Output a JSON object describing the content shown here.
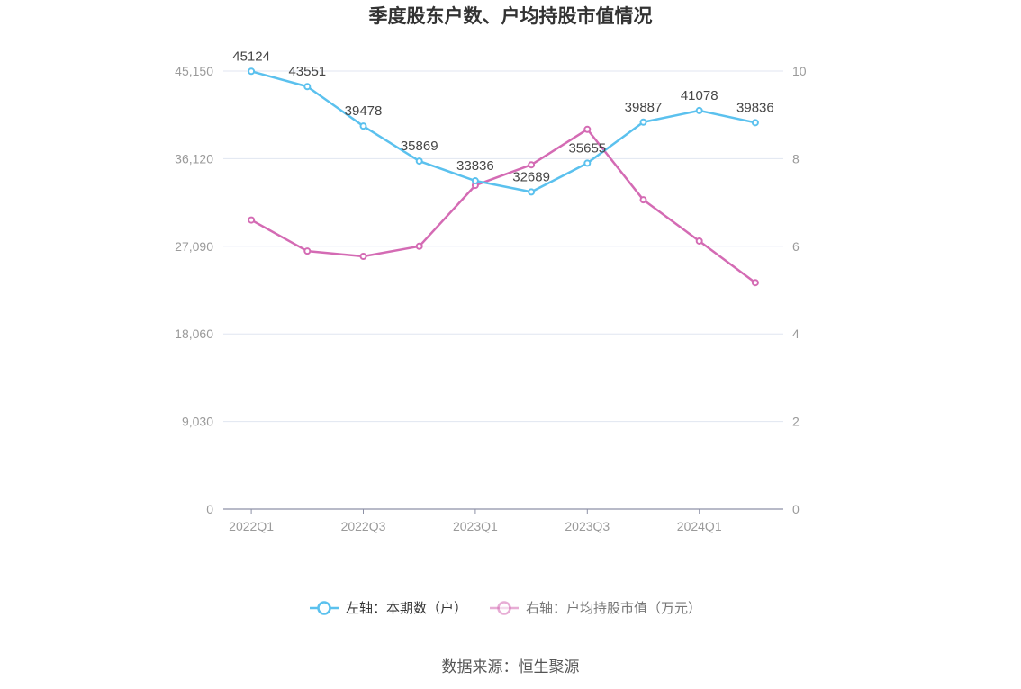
{
  "chart_data": {
    "type": "line",
    "title": "季度股东户数、户均持股市值情况",
    "categories": [
      "2022Q1",
      "",
      "2022Q3",
      "",
      "2023Q1",
      "",
      "2023Q3",
      "",
      "2024Q1",
      ""
    ],
    "y_left": {
      "range": [
        0,
        45150
      ],
      "ticks": [
        "0",
        "9,030",
        "18,060",
        "27,090",
        "36,120",
        "45,150"
      ]
    },
    "y_right": {
      "range": [
        0,
        10
      ],
      "ticks": [
        "0",
        "2",
        "4",
        "6",
        "8",
        "10"
      ]
    },
    "series": [
      {
        "name": "左轴：本期数（户）",
        "y_axis_index": 0,
        "color": "#5bc1ee",
        "show_labels": true,
        "values": [
          45124,
          43551,
          39478,
          35869,
          33836,
          32689,
          35655,
          39887,
          41078,
          39836
        ]
      },
      {
        "name": "右轴：户均持股市值（万元）",
        "y_axis_index": 1,
        "color": "#d46bb4",
        "show_labels": false,
        "values": [
          6.6,
          5.89,
          5.77,
          6.0,
          7.39,
          7.86,
          8.67,
          7.06,
          6.12,
          5.17
        ]
      }
    ],
    "grid": true,
    "legend_position": "bottom"
  },
  "source": "数据来源：恒生聚源"
}
